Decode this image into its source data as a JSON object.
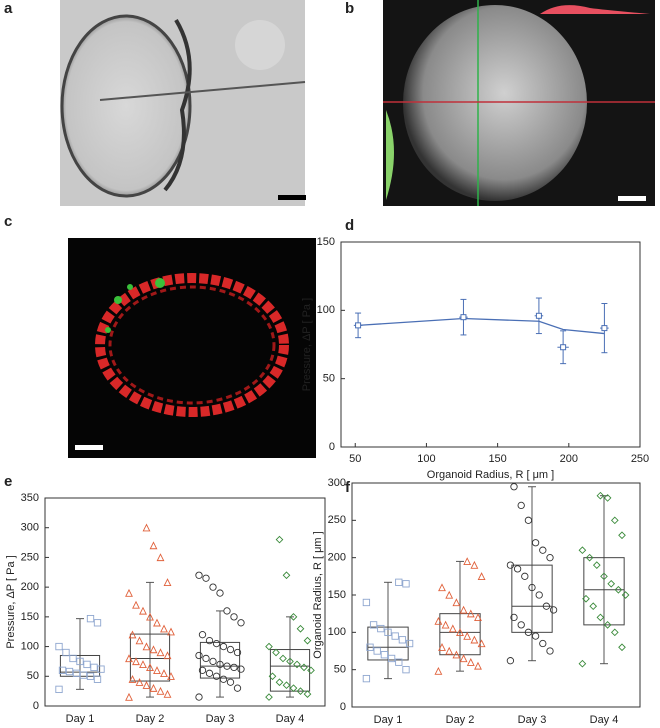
{
  "panel_labels": [
    "a",
    "b",
    "c",
    "d",
    "e",
    "f"
  ],
  "chart_data": [
    {
      "type": "errorline",
      "x_label": "Organoid Radius, R [ μm ]",
      "y_label": "Pressure, ΔP [ Pa ]",
      "x": [
        52,
        126,
        179,
        196,
        225
      ],
      "values": [
        89,
        95,
        96,
        73,
        87
      ],
      "errors": [
        9,
        13,
        13,
        12,
        18
      ],
      "x_errors": [
        3,
        3,
        3,
        4,
        3
      ],
      "fit": [
        89,
        94,
        92,
        86,
        83
      ],
      "color": "#4a6fb5",
      "xlim": [
        40,
        250
      ],
      "xticks": [
        50,
        100,
        150,
        200,
        250
      ],
      "ylim": [
        0,
        150
      ],
      "yticks": [
        0,
        50,
        100,
        150
      ]
    },
    {
      "type": "box",
      "y_label": "Pressure, ΔP [ Pa ]",
      "categories": [
        "Day 1",
        "Day 2",
        "Day 3",
        "Day 4"
      ],
      "colors": [
        "#8ea6cf",
        "#e0603a",
        "#333333",
        "#3a8a3a"
      ],
      "markers": [
        "square",
        "triangle",
        "circle",
        "diamond"
      ],
      "boxes": [
        {
          "whisker_low": 28,
          "q1": 50,
          "median": 57,
          "q3": 85,
          "whisker_high": 147,
          "points": [
            28,
            45,
            50,
            52,
            55,
            58,
            60,
            62,
            65,
            70,
            75,
            80,
            90,
            100,
            140,
            147
          ]
        },
        {
          "whisker_low": 15,
          "q1": 42,
          "median": 80,
          "q3": 121,
          "whisker_high": 208,
          "points": [
            15,
            20,
            25,
            30,
            35,
            40,
            45,
            50,
            55,
            60,
            65,
            70,
            75,
            80,
            85,
            90,
            95,
            100,
            110,
            120,
            125,
            130,
            140,
            150,
            160,
            170,
            190,
            208,
            250,
            270,
            300
          ]
        },
        {
          "whisker_low": 15,
          "q1": 47,
          "median": 67,
          "q3": 107,
          "whisker_high": 160,
          "points": [
            15,
            30,
            40,
            45,
            50,
            55,
            60,
            62,
            65,
            67,
            70,
            75,
            80,
            85,
            90,
            95,
            100,
            105,
            110,
            120,
            140,
            150,
            160,
            190,
            200,
            215,
            220
          ]
        },
        {
          "whisker_low": 15,
          "q1": 25,
          "median": 67,
          "q3": 95,
          "whisker_high": 150,
          "points": [
            15,
            20,
            25,
            30,
            35,
            40,
            50,
            60,
            65,
            70,
            75,
            80,
            90,
            100,
            110,
            130,
            150,
            220,
            280
          ]
        }
      ],
      "ylim": [
        0,
        350
      ],
      "yticks": [
        0,
        50,
        100,
        150,
        200,
        250,
        300,
        350
      ]
    },
    {
      "type": "box",
      "y_label": "Organoid Radius, R [ μm ]",
      "categories": [
        "Day 1",
        "Day 2",
        "Day 3",
        "Day 4"
      ],
      "colors": [
        "#8ea6cf",
        "#e0603a",
        "#333333",
        "#3a8a3a"
      ],
      "markers": [
        "square",
        "triangle",
        "circle",
        "diamond"
      ],
      "boxes": [
        {
          "whisker_low": 38,
          "q1": 63,
          "median": 80,
          "q3": 107,
          "whisker_high": 167,
          "points": [
            38,
            50,
            60,
            65,
            70,
            75,
            80,
            85,
            90,
            95,
            100,
            105,
            110,
            140,
            165,
            167
          ]
        },
        {
          "whisker_low": 48,
          "q1": 70,
          "median": 100,
          "q3": 125,
          "whisker_high": 195,
          "points": [
            48,
            55,
            60,
            65,
            70,
            75,
            80,
            85,
            90,
            95,
            100,
            105,
            110,
            115,
            120,
            125,
            130,
            140,
            150,
            160,
            175,
            190,
            195
          ]
        },
        {
          "whisker_low": 62,
          "q1": 100,
          "median": 135,
          "q3": 190,
          "whisker_high": 295,
          "points": [
            62,
            75,
            85,
            95,
            100,
            110,
            120,
            130,
            135,
            150,
            160,
            175,
            185,
            190,
            200,
            210,
            220,
            250,
            270,
            295
          ]
        },
        {
          "whisker_low": 58,
          "q1": 110,
          "median": 157,
          "q3": 200,
          "whisker_high": 283,
          "points": [
            58,
            80,
            100,
            110,
            120,
            135,
            145,
            150,
            157,
            165,
            175,
            190,
            200,
            210,
            230,
            250,
            280,
            283
          ]
        }
      ],
      "ylim": [
        0,
        300
      ],
      "yticks": [
        0,
        50,
        100,
        150,
        200,
        250,
        300
      ]
    }
  ]
}
